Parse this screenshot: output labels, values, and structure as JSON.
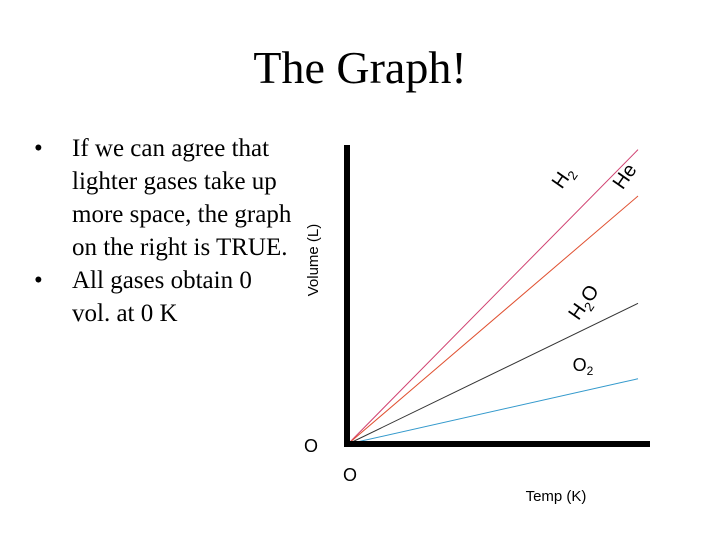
{
  "slide": {
    "title": "The Graph!",
    "bullets": [
      "If we can agree that lighter gases take up more space, the graph on the right is TRUE.",
      "All gases obtain 0 vol. at 0 K"
    ]
  },
  "graph": {
    "y_axis_label": "Volume (L)",
    "x_axis_label": "Temp (K)",
    "y_origin_label": "O",
    "x_origin_label": "O",
    "line_labels": [
      {
        "base": "H",
        "sub": "2",
        "after": "",
        "color": "#d04070"
      },
      {
        "base": "He",
        "sub": "",
        "after": "",
        "color": "#e05030"
      },
      {
        "base": "H",
        "sub": "2",
        "after": "O",
        "color": "#333333"
      },
      {
        "base": "O",
        "sub": "2",
        "after": "",
        "color": "#3399cc"
      }
    ]
  },
  "chart_data": {
    "type": "line",
    "xlabel": "Temp (K)",
    "ylabel": "Volume (L)",
    "x": [
      0,
      1
    ],
    "series": [
      {
        "name": "H2",
        "values": [
          0,
          2.03
        ],
        "color": "#d04070"
      },
      {
        "name": "He",
        "values": [
          0,
          1.71
        ],
        "color": "#e05030"
      },
      {
        "name": "H2O",
        "values": [
          0,
          0.97
        ],
        "color": "#333333"
      },
      {
        "name": "O2",
        "values": [
          0,
          0.45
        ],
        "color": "#3399cc"
      }
    ],
    "grid": false,
    "legend": "inline labels at line ends"
  }
}
